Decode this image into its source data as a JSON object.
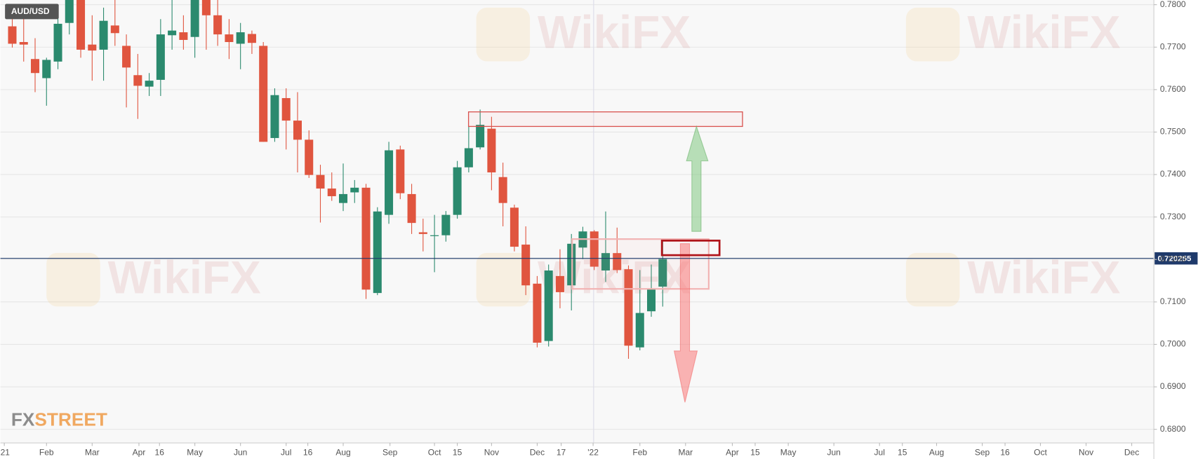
{
  "chart_data": {
    "type": "candlestick",
    "title": "AUD/USD",
    "watermark": "WikiFX",
    "logo": {
      "fx": "FX",
      "street": "STREET"
    },
    "up_color": "#2b8a6e",
    "down_color": "#e0553f",
    "grid": true,
    "ylim": [
      0.6768,
      0.7811
    ],
    "yticks": [
      {
        "value": 0.68,
        "label": "0.6800"
      },
      {
        "value": 0.69,
        "label": "0.6900"
      },
      {
        "value": 0.7,
        "label": "0.7000"
      },
      {
        "value": 0.71,
        "label": "0.7100"
      },
      {
        "value": 0.72,
        "label": "0.7200"
      },
      {
        "value": 0.73,
        "label": "0.7300"
      },
      {
        "value": 0.74,
        "label": "0.7400"
      },
      {
        "value": 0.75,
        "label": "0.7500"
      },
      {
        "value": 0.76,
        "label": "0.7600"
      },
      {
        "value": 0.77,
        "label": "0.7700"
      },
      {
        "value": 0.78,
        "label": "0.7800"
      }
    ],
    "current_price": {
      "value": 0.720255,
      "label": "0.720255"
    },
    "xlim": [
      -0.34,
      100.74
    ],
    "xticks": [
      {
        "value": 0,
        "label": "'21"
      },
      {
        "value": 3.7,
        "label": "Feb"
      },
      {
        "value": 7.7,
        "label": "Mar"
      },
      {
        "value": 11.8,
        "label": "Apr"
      },
      {
        "value": 13.6,
        "label": "16"
      },
      {
        "value": 16.7,
        "label": "May"
      },
      {
        "value": 20.7,
        "label": "Jun"
      },
      {
        "value": 24.7,
        "label": "Jul"
      },
      {
        "value": 26.6,
        "label": "16"
      },
      {
        "value": 29.7,
        "label": "Aug"
      },
      {
        "value": 33.8,
        "label": "Sep"
      },
      {
        "value": 37.7,
        "label": "Oct"
      },
      {
        "value": 39.7,
        "label": "15"
      },
      {
        "value": 42.7,
        "label": "Nov"
      },
      {
        "value": 46.7,
        "label": "Dec"
      },
      {
        "value": 48.8,
        "label": "17"
      },
      {
        "value": 51.6,
        "label": "'22"
      },
      {
        "value": 55.7,
        "label": "Feb"
      },
      {
        "value": 59.7,
        "label": "Mar"
      },
      {
        "value": 63.8,
        "label": "Apr"
      },
      {
        "value": 65.8,
        "label": "15"
      },
      {
        "value": 68.7,
        "label": "May"
      },
      {
        "value": 72.7,
        "label": "Jun"
      },
      {
        "value": 76.7,
        "label": "Jul"
      },
      {
        "value": 78.7,
        "label": "15"
      },
      {
        "value": 81.7,
        "label": "Aug"
      },
      {
        "value": 85.7,
        "label": "Sep"
      },
      {
        "value": 87.7,
        "label": "16"
      },
      {
        "value": 90.8,
        "label": "Oct"
      },
      {
        "value": 94.8,
        "label": "Nov"
      },
      {
        "value": 98.8,
        "label": "Dec"
      }
    ],
    "x": [
      0.7,
      1.7,
      2.7,
      3.7,
      4.7,
      5.7,
      6.7,
      7.7,
      8.7,
      9.7,
      10.7,
      11.7,
      12.7,
      13.7,
      14.7,
      15.7,
      16.7,
      17.7,
      18.7,
      19.7,
      20.7,
      21.7,
      22.7,
      23.7,
      24.7,
      25.7,
      26.7,
      27.7,
      28.7,
      29.7,
      30.7,
      31.7,
      32.7,
      33.7,
      34.7,
      35.7,
      36.7,
      37.7,
      38.7,
      39.7,
      40.7,
      41.7,
      42.7,
      43.7,
      44.7,
      45.7,
      46.7,
      47.7,
      48.7,
      49.7,
      50.7,
      51.7,
      52.7,
      53.7,
      54.7,
      55.7,
      56.7,
      57.7
    ],
    "open": [
      0.7749,
      0.7712,
      0.7672,
      0.7627,
      0.7666,
      0.7757,
      0.7811,
      0.7706,
      0.7694,
      0.7751,
      0.7703,
      0.7634,
      0.7607,
      0.7623,
      0.7728,
      0.7735,
      0.7724,
      0.7811,
      0.7775,
      0.773,
      0.7708,
      0.7731,
      0.7703,
      0.7486,
      0.758,
      0.7527,
      0.7482,
      0.7399,
      0.7367,
      0.7333,
      0.7358,
      0.7369,
      0.7121,
      0.7305,
      0.7459,
      0.7354,
      0.7264,
      0.7255,
      0.7257,
      0.7305,
      0.7417,
      0.7464,
      0.7508,
      0.7394,
      0.7322,
      0.7235,
      0.7143,
      0.7008,
      0.7161,
      0.7139,
      0.7228,
      0.7266,
      0.7174,
      0.7215,
      0.7177,
      0.6993,
      0.7078,
      0.7136
    ],
    "high": [
      0.7766,
      0.7775,
      0.7721,
      0.7675,
      0.7775,
      0.7815,
      0.7815,
      0.7775,
      0.7793,
      0.7811,
      0.773,
      0.7684,
      0.7639,
      0.7766,
      0.7811,
      0.7775,
      0.7815,
      0.7815,
      0.7811,
      0.7766,
      0.7757,
      0.7739,
      0.7712,
      0.7603,
      0.7603,
      0.7594,
      0.7504,
      0.7423,
      0.7405,
      0.7426,
      0.7387,
      0.7378,
      0.7323,
      0.7477,
      0.7468,
      0.7378,
      0.7296,
      0.7305,
      0.7314,
      0.7432,
      0.7513,
      0.7553,
      0.7536,
      0.7428,
      0.7329,
      0.7278,
      0.7161,
      0.7188,
      0.7224,
      0.726,
      0.7277,
      0.7269,
      0.7313,
      0.7275,
      0.7186,
      0.7175,
      0.7188,
      0.7249
    ],
    "low": [
      0.7699,
      0.7666,
      0.7594,
      0.7562,
      0.7648,
      0.773,
      0.7675,
      0.7621,
      0.7621,
      0.7703,
      0.7558,
      0.7531,
      0.7585,
      0.7585,
      0.7694,
      0.7694,
      0.7675,
      0.7694,
      0.7703,
      0.7672,
      0.7648,
      0.7684,
      0.7477,
      0.7477,
      0.7459,
      0.7405,
      0.7392,
      0.7287,
      0.7338,
      0.7314,
      0.7333,
      0.7107,
      0.7116,
      0.7284,
      0.7342,
      0.726,
      0.7219,
      0.717,
      0.7242,
      0.7296,
      0.7405,
      0.7459,
      0.7363,
      0.7278,
      0.7219,
      0.7116,
      0.6993,
      0.6995,
      0.7085,
      0.708,
      0.7201,
      0.7175,
      0.7147,
      0.7168,
      0.6966,
      0.6986,
      0.7065,
      0.7089
    ],
    "close": [
      0.7708,
      0.7706,
      0.7639,
      0.767,
      0.7755,
      0.7811,
      0.7694,
      0.7692,
      0.7762,
      0.7733,
      0.7652,
      0.7609,
      0.7621,
      0.773,
      0.7739,
      0.7717,
      0.7811,
      0.7775,
      0.773,
      0.7712,
      0.7735,
      0.771,
      0.7477,
      0.7587,
      0.7527,
      0.7482,
      0.7399,
      0.7367,
      0.7349,
      0.7354,
      0.7369,
      0.7129,
      0.7313,
      0.7457,
      0.7356,
      0.7286,
      0.726,
      0.7257,
      0.7305,
      0.7417,
      0.7462,
      0.7517,
      0.7405,
      0.7333,
      0.723,
      0.7139,
      0.7004,
      0.7174,
      0.7123,
      0.7237,
      0.7266,
      0.7183,
      0.7215,
      0.7175,
      0.6997,
      0.7074,
      0.7132,
      0.7201
    ]
  }
}
